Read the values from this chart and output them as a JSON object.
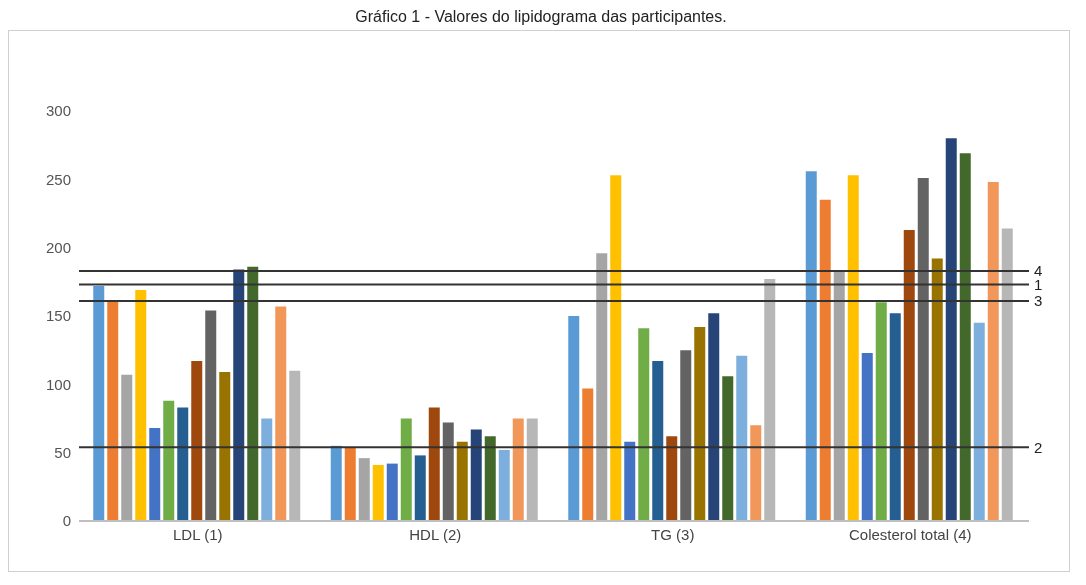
{
  "chart_data": {
    "type": "bar",
    "title": "Gráfico 1 - Valores do lipidograma das participantes.",
    "categories": [
      "LDL  (1)",
      "HDL  (2)",
      "TG  (3)",
      "Colesterol total  (4)"
    ],
    "series": [
      {
        "color": "#5b9bd5",
        "values": [
          172,
          55,
          150,
          256
        ]
      },
      {
        "color": "#ed7d31",
        "values": [
          161,
          54,
          97,
          235
        ]
      },
      {
        "color": "#a5a5a5",
        "values": [
          107,
          46,
          196,
          183
        ]
      },
      {
        "color": "#ffc000",
        "values": [
          169,
          41,
          253,
          253
        ]
      },
      {
        "color": "#4472c4",
        "values": [
          68,
          42,
          58,
          123
        ]
      },
      {
        "color": "#70ad47",
        "values": [
          88,
          75,
          141,
          160
        ]
      },
      {
        "color": "#255e91",
        "values": [
          83,
          48,
          117,
          152
        ]
      },
      {
        "color": "#9e480e",
        "values": [
          117,
          83,
          62,
          213
        ]
      },
      {
        "color": "#636363",
        "values": [
          154,
          72,
          125,
          251
        ]
      },
      {
        "color": "#997300",
        "values": [
          109,
          58,
          142,
          192
        ]
      },
      {
        "color": "#264478",
        "values": [
          184,
          67,
          152,
          280
        ]
      },
      {
        "color": "#43682b",
        "values": [
          186,
          62,
          106,
          269
        ]
      },
      {
        "color": "#7cafdd",
        "values": [
          75,
          52,
          121,
          145
        ]
      },
      {
        "color": "#f1975a",
        "values": [
          157,
          75,
          70,
          248
        ]
      },
      {
        "color": "#b7b7b7",
        "values": [
          110,
          75,
          177,
          214
        ]
      }
    ],
    "ylim": [
      0,
      300
    ],
    "yticks": [
      0,
      50,
      100,
      150,
      200,
      250,
      300
    ],
    "grid": false,
    "legend": false,
    "ref_lines": [
      {
        "axis": "y",
        "value": 183,
        "color": "#333333"
      },
      {
        "axis": "y",
        "value": 173,
        "color": "#333333"
      },
      {
        "axis": "y",
        "value": 161,
        "color": "#333333"
      },
      {
        "axis": "y",
        "value": 54,
        "color": "#333333"
      }
    ],
    "annotations": [
      "4",
      "1",
      "3",
      "2"
    ]
  }
}
